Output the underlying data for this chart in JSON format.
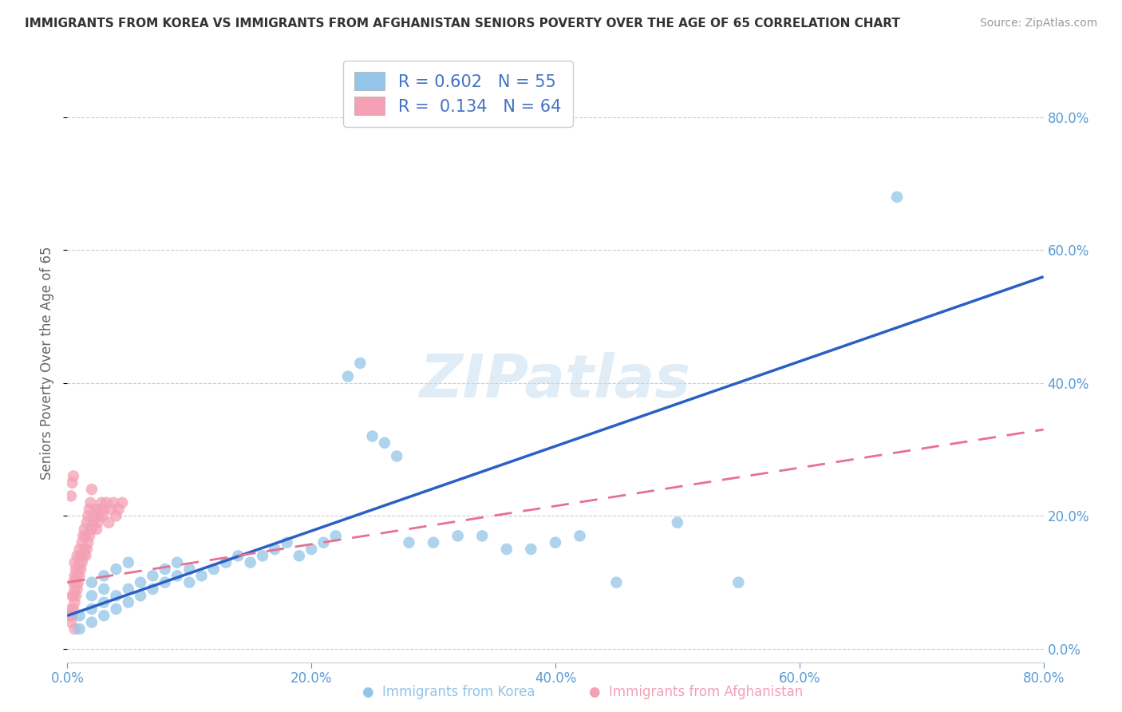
{
  "title": "IMMIGRANTS FROM KOREA VS IMMIGRANTS FROM AFGHANISTAN SENIORS POVERTY OVER THE AGE OF 65 CORRELATION CHART",
  "source": "Source: ZipAtlas.com",
  "ylabel": "Seniors Poverty Over the Age of 65",
  "xlabel_korea": "Immigrants from Korea",
  "xlabel_afghanistan": "Immigrants from Afghanistan",
  "xlim": [
    0,
    0.8
  ],
  "ylim": [
    -0.02,
    0.88
  ],
  "yticks": [
    0.0,
    0.2,
    0.4,
    0.6,
    0.8
  ],
  "xticks": [
    0.0,
    0.2,
    0.4,
    0.6,
    0.8
  ],
  "korea_color": "#92C5E8",
  "afghanistan_color": "#F4A0B5",
  "korea_line_color": "#2B5FC4",
  "afghanistan_line_color": "#E87090",
  "r_korea": 0.602,
  "n_korea": 55,
  "r_afghanistan": 0.134,
  "n_afghanistan": 64,
  "background_color": "#FFFFFF",
  "grid_color": "#CCCCCC",
  "title_color": "#333333",
  "axis_label_color": "#666666",
  "tick_label_color": "#5B9BD5",
  "korea_scatter_x": [
    0.01,
    0.01,
    0.02,
    0.02,
    0.02,
    0.02,
    0.03,
    0.03,
    0.03,
    0.03,
    0.04,
    0.04,
    0.04,
    0.05,
    0.05,
    0.05,
    0.06,
    0.06,
    0.07,
    0.07,
    0.08,
    0.08,
    0.09,
    0.09,
    0.1,
    0.1,
    0.11,
    0.12,
    0.13,
    0.14,
    0.15,
    0.16,
    0.17,
    0.18,
    0.19,
    0.2,
    0.21,
    0.22,
    0.23,
    0.24,
    0.25,
    0.26,
    0.27,
    0.28,
    0.3,
    0.32,
    0.34,
    0.36,
    0.38,
    0.4,
    0.42,
    0.45,
    0.5,
    0.55,
    0.68
  ],
  "korea_scatter_y": [
    0.03,
    0.05,
    0.04,
    0.06,
    0.08,
    0.1,
    0.05,
    0.07,
    0.09,
    0.11,
    0.06,
    0.08,
    0.12,
    0.07,
    0.09,
    0.13,
    0.08,
    0.1,
    0.09,
    0.11,
    0.1,
    0.12,
    0.11,
    0.13,
    0.1,
    0.12,
    0.11,
    0.12,
    0.13,
    0.14,
    0.13,
    0.14,
    0.15,
    0.16,
    0.14,
    0.15,
    0.16,
    0.17,
    0.41,
    0.43,
    0.32,
    0.31,
    0.29,
    0.16,
    0.16,
    0.17,
    0.17,
    0.15,
    0.15,
    0.16,
    0.17,
    0.1,
    0.19,
    0.1,
    0.68
  ],
  "afghanistan_scatter_x": [
    0.002,
    0.003,
    0.003,
    0.004,
    0.004,
    0.005,
    0.005,
    0.005,
    0.006,
    0.006,
    0.006,
    0.006,
    0.007,
    0.007,
    0.007,
    0.008,
    0.008,
    0.008,
    0.009,
    0.009,
    0.01,
    0.01,
    0.01,
    0.011,
    0.011,
    0.012,
    0.012,
    0.013,
    0.013,
    0.014,
    0.014,
    0.015,
    0.015,
    0.016,
    0.016,
    0.017,
    0.017,
    0.018,
    0.018,
    0.019,
    0.019,
    0.02,
    0.02,
    0.021,
    0.022,
    0.023,
    0.024,
    0.025,
    0.026,
    0.027,
    0.028,
    0.029,
    0.03,
    0.032,
    0.034,
    0.036,
    0.038,
    0.04,
    0.042,
    0.045,
    0.003,
    0.004,
    0.005,
    0.006
  ],
  "afghanistan_scatter_y": [
    0.05,
    0.04,
    0.06,
    0.05,
    0.08,
    0.06,
    0.08,
    0.1,
    0.07,
    0.09,
    0.11,
    0.13,
    0.08,
    0.1,
    0.12,
    0.09,
    0.11,
    0.14,
    0.1,
    0.12,
    0.11,
    0.13,
    0.15,
    0.12,
    0.14,
    0.13,
    0.16,
    0.14,
    0.17,
    0.15,
    0.18,
    0.14,
    0.17,
    0.15,
    0.19,
    0.16,
    0.2,
    0.17,
    0.21,
    0.18,
    0.22,
    0.18,
    0.24,
    0.19,
    0.2,
    0.21,
    0.18,
    0.19,
    0.2,
    0.21,
    0.22,
    0.2,
    0.21,
    0.22,
    0.19,
    0.21,
    0.22,
    0.2,
    0.21,
    0.22,
    0.23,
    0.25,
    0.26,
    0.03
  ],
  "korea_line_x0": 0.0,
  "korea_line_y0": 0.05,
  "korea_line_x1": 0.8,
  "korea_line_y1": 0.56,
  "afghan_line_x0": 0.0,
  "afghan_line_y0": 0.1,
  "afghan_line_x1": 0.8,
  "afghan_line_y1": 0.33
}
